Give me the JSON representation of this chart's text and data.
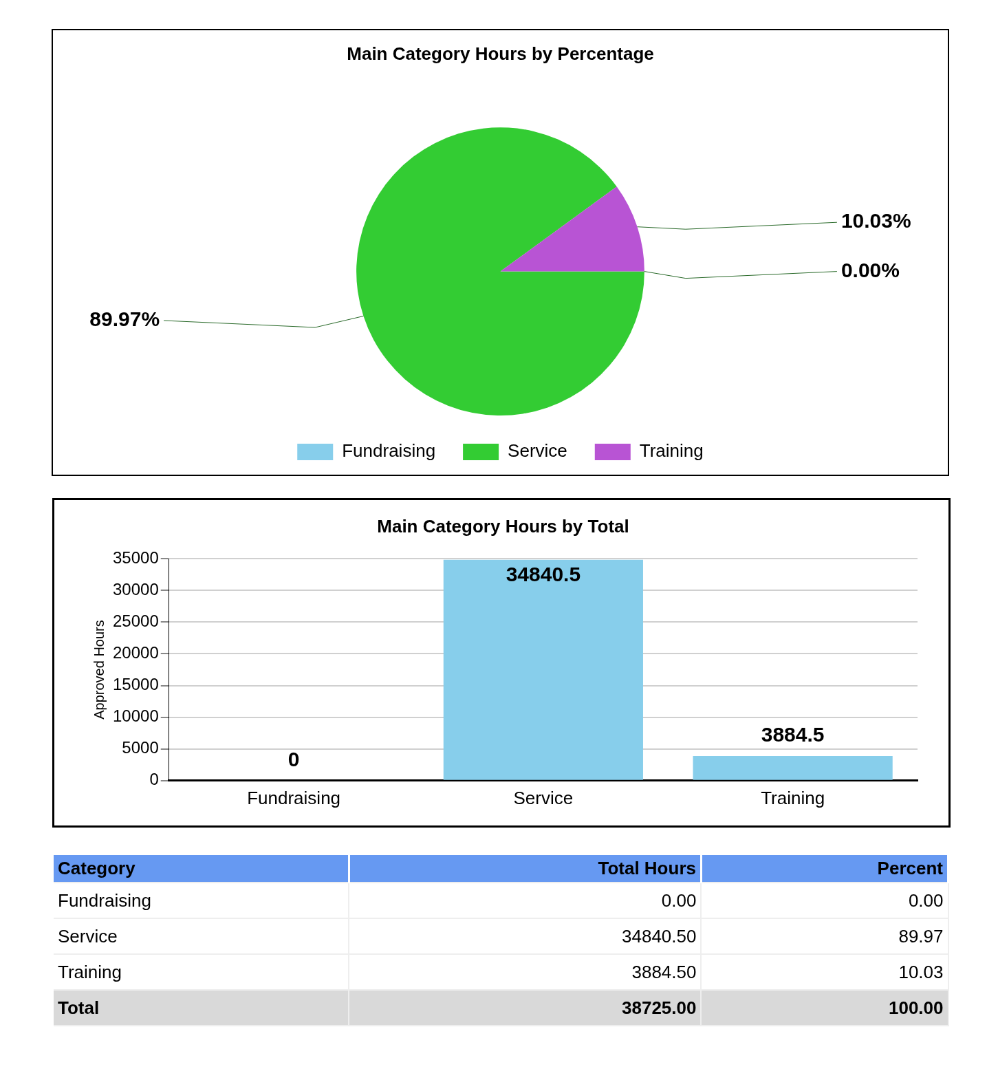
{
  "chart_data": [
    {
      "type": "pie",
      "title": "Main Category Hours by Percentage",
      "categories": [
        "Fundraising",
        "Service",
        "Training"
      ],
      "values": [
        0,
        89.97,
        10.03
      ],
      "colors": [
        "#87ceeb",
        "#33cc33",
        "#b854d4"
      ],
      "value_labels": [
        "0.00%",
        "89.97%",
        "10.03%"
      ],
      "legend": "bottom"
    },
    {
      "type": "bar",
      "title": "Main Category Hours by Total",
      "categories": [
        "Fundraising",
        "Service",
        "Training"
      ],
      "values": [
        0,
        34840.5,
        3884.5
      ],
      "color": "#87ceeb",
      "ylabel": "Approved Hours",
      "ylim": [
        0,
        35000
      ],
      "yticks": [
        0,
        5000,
        10000,
        15000,
        20000,
        25000,
        30000,
        35000
      ],
      "grid": "y",
      "data_labels": true,
      "legend": false
    },
    {
      "type": "other",
      "xlabel": "Category",
      "categories": [
        "Fundraising",
        "Service",
        "Training"
      ],
      "series": [
        {
          "name": "Total Hours",
          "values": [
            0,
            34840.5,
            3884.5
          ],
          "value_labels": [
            "0.00",
            "34840.50",
            "3884.50"
          ]
        },
        {
          "name": "Percent",
          "values": [
            0,
            89.97,
            10.03
          ],
          "value_labels": [
            "0.00",
            "89.97",
            "10.03"
          ]
        }
      ],
      "totals": [
        "38725.00",
        "100.00"
      ],
      "annotations": [
        "Total"
      ]
    }
  ]
}
